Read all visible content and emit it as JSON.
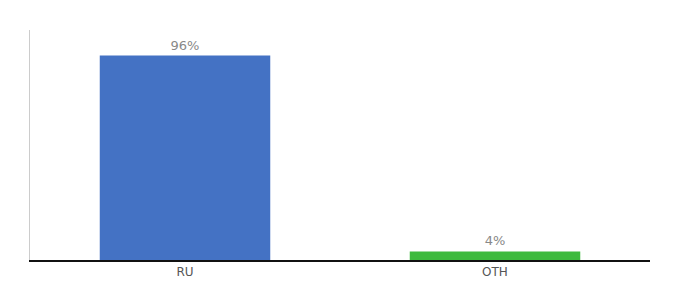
{
  "chart_data": {
    "type": "bar",
    "categories": [
      "RU",
      "OTH"
    ],
    "values": [
      96,
      4
    ],
    "colors": [
      "#4472c4",
      "#3dba3d"
    ],
    "data_labels": true,
    "value_labels": [
      "96%",
      "4%"
    ],
    "ylim": [
      0,
      108
    ],
    "tick_labels": "x",
    "grid": false
  }
}
